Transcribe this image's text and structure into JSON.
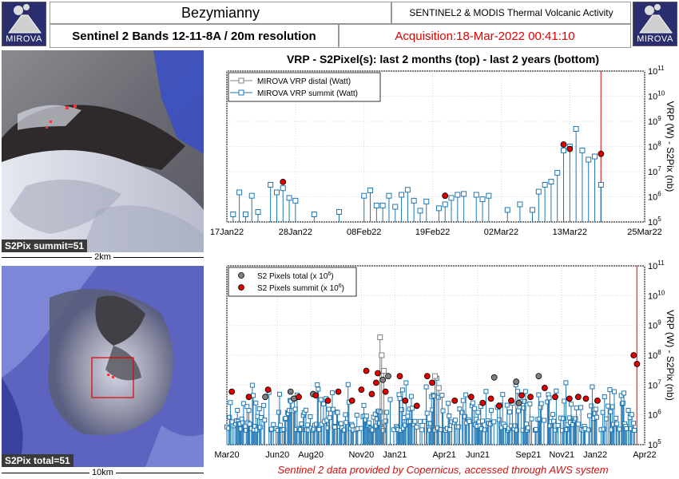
{
  "header": {
    "logo_left": "MIROVA",
    "logo_right": "MIROVA",
    "volcano": "Bezymianny",
    "system": "SENTINEL2 & MODIS Thermal Volcanic Activity",
    "bands": "Sentinel 2 Bands 12-11-8A / 20m resolution",
    "acquisition": "Acquisition:18-Mar-2022 00:41:10"
  },
  "images": {
    "summit_label": "S2Pix summit=51",
    "summit_scale": "2km",
    "total_label": "S2Pix total=51",
    "total_scale": "10km"
  },
  "plot_title": "VRP - S2Pixel(s): last 2 months (top) - last 2 years (bottom)",
  "credit": "Sentinel 2 data provided by Copernicus, accessed through AWS system",
  "colors": {
    "summit": "#1f77b4",
    "distal": "#808080",
    "pix_total": "#808080",
    "pix_summit": "#e00000",
    "acq_line": "#e05050"
  },
  "chart_data": [
    {
      "type": "scatter",
      "name": "last-2-months",
      "ylabel": "VRP (W) - S2Pix (nb)",
      "yscale": "log",
      "ylim": [
        100000,
        100000000000
      ],
      "yticks": [
        {
          "value": 100000,
          "base": "10",
          "exp": "5"
        },
        {
          "value": 1000000,
          "base": "10",
          "exp": "6"
        },
        {
          "value": 10000000,
          "base": "10",
          "exp": "7"
        },
        {
          "value": 100000000,
          "base": "10",
          "exp": "8"
        },
        {
          "value": 1000000000,
          "base": "10",
          "exp": "9"
        },
        {
          "value": 10000000000,
          "base": "10",
          "exp": "10"
        },
        {
          "value": 100000000000,
          "base": "10",
          "exp": "11"
        }
      ],
      "xlim": [
        "2022-01-17",
        "2022-03-25"
      ],
      "xticks": [
        {
          "date": "2022-01-17",
          "label": "17Jan22"
        },
        {
          "date": "2022-01-28",
          "label": "28Jan22"
        },
        {
          "date": "2022-02-08",
          "label": "08Feb22"
        },
        {
          "date": "2022-02-19",
          "label": "19Feb22"
        },
        {
          "date": "2022-03-02",
          "label": "02Mar22"
        },
        {
          "date": "2022-03-13",
          "label": "13Mar22"
        },
        {
          "date": "2022-03-25",
          "label": "25Mar22"
        }
      ],
      "acquisition_date": "2022-03-18",
      "legend": {
        "position": "top-left",
        "entries": [
          {
            "label": "MIROVA VRP distal (Watt)",
            "key": "distal"
          },
          {
            "label": "MIROVA VRP summit (Watt)",
            "key": "summit"
          }
        ]
      },
      "summit_vrp": [
        [
          "2022-01-18",
          200000
        ],
        [
          "2022-01-19",
          1500000
        ],
        [
          "2022-01-20",
          200000
        ],
        [
          "2022-01-21",
          1100000
        ],
        [
          "2022-01-22",
          250000
        ],
        [
          "2022-01-24",
          3000000
        ],
        [
          "2022-01-25",
          1500000
        ],
        [
          "2022-01-26",
          2200000
        ],
        [
          "2022-01-27",
          900000
        ],
        [
          "2022-01-28",
          700000
        ],
        [
          "2022-01-31",
          200000
        ],
        [
          "2022-02-04",
          250000
        ],
        [
          "2022-02-08",
          1100000
        ],
        [
          "2022-02-09",
          1800000
        ],
        [
          "2022-02-10",
          450000
        ],
        [
          "2022-02-11",
          450000
        ],
        [
          "2022-02-12",
          1100000
        ],
        [
          "2022-02-13",
          400000
        ],
        [
          "2022-02-14",
          1200000
        ],
        [
          "2022-02-15",
          1900000
        ],
        [
          "2022-02-16",
          700000
        ],
        [
          "2022-02-17",
          280000
        ],
        [
          "2022-02-18",
          650000
        ],
        [
          "2022-02-20",
          350000
        ],
        [
          "2022-02-21",
          500000
        ],
        [
          "2022-02-22",
          900000
        ],
        [
          "2022-02-23",
          1200000
        ],
        [
          "2022-02-24",
          1300000
        ],
        [
          "2022-02-26",
          1200000
        ],
        [
          "2022-02-27",
          800000
        ],
        [
          "2022-02-28",
          1100000
        ],
        [
          "2022-03-03",
          300000
        ],
        [
          "2022-03-05",
          500000
        ],
        [
          "2022-03-07",
          300000
        ],
        [
          "2022-03-08",
          1600000
        ],
        [
          "2022-03-09",
          3000000
        ],
        [
          "2022-03-10",
          4000000
        ],
        [
          "2022-03-11",
          9000000
        ],
        [
          "2022-03-12",
          70000000
        ],
        [
          "2022-03-13",
          100000000
        ],
        [
          "2022-03-14",
          500000000
        ],
        [
          "2022-03-15",
          70000000
        ],
        [
          "2022-03-16",
          30000000
        ],
        [
          "2022-03-17",
          40000000
        ],
        [
          "2022-03-18",
          3000000
        ]
      ],
      "summit_pixels": [
        [
          "2022-01-26",
          3900000
        ],
        [
          "2022-02-21",
          1100000
        ],
        [
          "2022-03-13",
          80000000
        ],
        [
          "2022-03-12",
          120000000
        ],
        [
          "2022-03-18",
          51000000
        ]
      ]
    },
    {
      "type": "scatter",
      "name": "last-2-years",
      "ylabel": "VRP (W) - S2Pix (nb)",
      "yscale": "log",
      "ylim": [
        100000,
        100000000000
      ],
      "yticks": [
        {
          "value": 100000,
          "base": "10",
          "exp": "5"
        },
        {
          "value": 1000000,
          "base": "10",
          "exp": "6"
        },
        {
          "value": 10000000,
          "base": "10",
          "exp": "7"
        },
        {
          "value": 100000000,
          "base": "10",
          "exp": "8"
        },
        {
          "value": 1000000000,
          "base": "10",
          "exp": "9"
        },
        {
          "value": 10000000000,
          "base": "10",
          "exp": "10"
        },
        {
          "value": 100000000000,
          "base": "10",
          "exp": "11"
        }
      ],
      "xlim": [
        "2020-03-01",
        "2022-04-01"
      ],
      "xticks": [
        {
          "date": "2020-03-01",
          "label": "Mar20"
        },
        {
          "date": "2020-06-01",
          "label": "Jun20"
        },
        {
          "date": "2020-08-01",
          "label": "Aug20"
        },
        {
          "date": "2020-11-01",
          "label": "Nov20"
        },
        {
          "date": "2021-01-01",
          "label": "Jan21"
        },
        {
          "date": "2021-04-01",
          "label": "Apr21"
        },
        {
          "date": "2021-06-01",
          "label": "Jun21"
        },
        {
          "date": "2021-09-01",
          "label": "Sep21"
        },
        {
          "date": "2021-11-01",
          "label": "Nov21"
        },
        {
          "date": "2022-01-01",
          "label": "Jan22"
        },
        {
          "date": "2022-04-01",
          "label": "Apr22"
        }
      ],
      "acquisition_date": "2022-03-18",
      "legend": {
        "position": "top-left",
        "entries": [
          {
            "label": "S2 Pixels total (x 10",
            "sup": "6",
            "tail": ")",
            "key": "pix_total"
          },
          {
            "label": "S2 Pixels summit (x 10",
            "sup": "6",
            "tail": ")",
            "key": "pix_summit"
          }
        ]
      },
      "summit_vrp_summary": {
        "range": [
          "2020-03-01",
          "2022-03-18"
        ],
        "typical_min": 300000,
        "typical_max": 20000000
      },
      "distal_vrp": [
        [
          "2020-12-05",
          400000000
        ],
        [
          "2020-12-08",
          100000000
        ],
        [
          "2020-12-12",
          30000000
        ],
        [
          "2021-03-15",
          20000000
        ],
        [
          "2021-03-22",
          8000000
        ]
      ],
      "total_pixels": [
        [
          "2020-06-25",
          6000000
        ],
        [
          "2020-08-05",
          5000000
        ],
        [
          "2020-12-10",
          15000000
        ],
        [
          "2020-12-20",
          20000000
        ],
        [
          "2021-07-01",
          18000000
        ],
        [
          "2021-08-10",
          13000000
        ],
        [
          "2021-08-15",
          2500000
        ],
        [
          "2021-09-20",
          20000000
        ],
        [
          "2020-05-10",
          4000000
        ],
        [
          "2020-07-01",
          3500000
        ]
      ],
      "summit_pixels": [
        [
          "2020-03-10",
          6000000
        ],
        [
          "2020-04-10",
          4000000
        ],
        [
          "2020-05-15",
          7000000
        ],
        [
          "2020-07-10",
          4000000
        ],
        [
          "2020-08-10",
          4500000
        ],
        [
          "2020-09-01",
          3000000
        ],
        [
          "2020-09-20",
          6000000
        ],
        [
          "2020-10-15",
          3000000
        ],
        [
          "2020-11-01",
          7000000
        ],
        [
          "2020-11-10",
          30000000
        ],
        [
          "2020-11-20",
          5000000
        ],
        [
          "2020-11-28",
          12000000
        ],
        [
          "2020-12-01",
          25000000
        ],
        [
          "2020-12-15",
          6000000
        ],
        [
          "2021-01-10",
          20000000
        ],
        [
          "2021-01-20",
          3000000
        ],
        [
          "2021-02-10",
          2000000
        ],
        [
          "2021-03-01",
          20000000
        ],
        [
          "2021-03-10",
          12000000
        ],
        [
          "2021-04-20",
          3000000
        ],
        [
          "2021-05-20",
          4000000
        ],
        [
          "2021-06-10",
          2500000
        ],
        [
          "2021-06-25",
          3500000
        ],
        [
          "2021-07-10",
          2000000
        ],
        [
          "2021-08-01",
          3000000
        ],
        [
          "2021-08-20",
          4500000
        ],
        [
          "2021-09-05",
          4000000
        ],
        [
          "2021-10-01",
          8000000
        ],
        [
          "2021-10-20",
          4000000
        ],
        [
          "2021-11-15",
          3500000
        ],
        [
          "2021-12-01",
          4000000
        ],
        [
          "2021-12-15",
          3500000
        ],
        [
          "2022-01-05",
          3000000
        ],
        [
          "2022-03-12",
          100000000
        ],
        [
          "2022-03-18",
          51000000
        ]
      ]
    }
  ]
}
